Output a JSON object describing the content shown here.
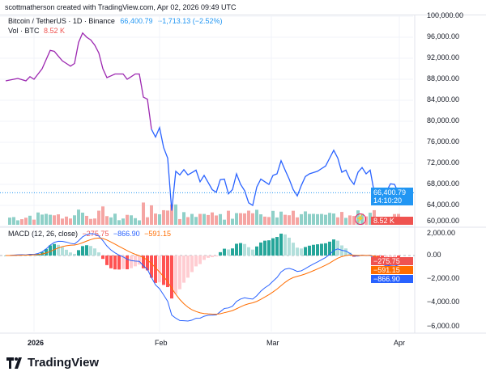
{
  "header": {
    "credit": "scottmatherson created with TradingView.com, Apr 02, 2026 09:49 UTC"
  },
  "legend": {
    "symbol": "Bitcoin / TetherUS · 1D · Binance",
    "price": "66,400.79",
    "change": "−1,713.13 (−2.52%)",
    "vol_label": "Vol · BTC",
    "vol_value": "8.52 K"
  },
  "macd_legend": {
    "label": "MACD (12, 26, close)",
    "hist": "−275.75",
    "macd": "−866.90",
    "signal": "−591.15"
  },
  "price_axis": [
    "100,000.00",
    "96,000.00",
    "92,000.00",
    "88,000.00",
    "84,000.00",
    "80,000.00",
    "76,000.00",
    "72,000.00",
    "68,000.00",
    "64,000.00",
    "60,000.00"
  ],
  "macd_axis": [
    "2,000.00",
    "0.00",
    "−2,000.00",
    "−4,000.00",
    "−6,000.00"
  ],
  "price_tag": {
    "price": "66,400.79",
    "countdown": "14:10:20"
  },
  "vol_tag": "8.52 K",
  "macd_tags": {
    "hist": "−275.75",
    "signal": "−591.15",
    "macd": "−866.90"
  },
  "time_axis": [
    "2026",
    "Feb",
    "Mar",
    "Apr"
  ],
  "logo": "TradingView",
  "colors": {
    "line": "#2962ff",
    "line_early": "#9c27b0",
    "up": "#26a69a",
    "down": "#ef5350",
    "signal": "#ff6d00",
    "tag_blue": "#2196f3"
  },
  "chart_data": {
    "type": "line",
    "y_range": [
      60000,
      100000
    ],
    "macd_range": [
      -6000,
      2000
    ],
    "prices": [
      [
        "2025-12-25",
        87700
      ],
      [
        "2025-12-28",
        88150
      ],
      [
        "2025-12-30",
        87700
      ],
      [
        "2025-12-31",
        88500
      ],
      [
        "2026-01-01",
        88000
      ],
      [
        "2026-01-03",
        90000
      ],
      [
        "2026-01-05",
        93500
      ],
      [
        "2026-01-06",
        93300
      ],
      [
        "2026-01-08",
        91500
      ],
      [
        "2026-01-10",
        90500
      ],
      [
        "2026-01-11",
        91000
      ],
      [
        "2026-01-12",
        95000
      ],
      [
        "2026-01-13",
        96800
      ],
      [
        "2026-01-14",
        96000
      ],
      [
        "2026-01-15",
        95500
      ],
      [
        "2026-01-16",
        94500
      ],
      [
        "2026-01-17",
        93000
      ],
      [
        "2026-01-18",
        90000
      ],
      [
        "2026-01-19",
        88300
      ],
      [
        "2026-01-21",
        89000
      ],
      [
        "2026-01-23",
        89000
      ],
      [
        "2026-01-24",
        88000
      ],
      [
        "2026-01-26",
        89000
      ],
      [
        "2026-01-27",
        89000
      ],
      [
        "2026-01-28",
        84600
      ],
      [
        "2026-01-29",
        84200
      ],
      [
        "2026-01-30",
        78500
      ],
      [
        "2026-01-31",
        77000
      ],
      [
        "2026-02-01",
        78800
      ],
      [
        "2026-02-02",
        75000
      ],
      [
        "2026-02-03",
        73000
      ],
      [
        "2026-02-04",
        63000
      ],
      [
        "2026-02-05",
        70500
      ],
      [
        "2026-02-06",
        69800
      ],
      [
        "2026-02-07",
        70800
      ],
      [
        "2026-02-08",
        69800
      ],
      [
        "2026-02-10",
        70700
      ],
      [
        "2026-02-11",
        68500
      ],
      [
        "2026-02-12",
        69700
      ],
      [
        "2026-02-14",
        67000
      ],
      [
        "2026-02-15",
        66500
      ],
      [
        "2026-02-16",
        68900
      ],
      [
        "2026-02-17",
        69000
      ],
      [
        "2026-02-18",
        66200
      ],
      [
        "2026-02-19",
        67000
      ],
      [
        "2026-02-20",
        70000
      ],
      [
        "2026-02-21",
        68000
      ],
      [
        "2026-02-22",
        66800
      ],
      [
        "2026-02-23",
        64500
      ],
      [
        "2026-02-24",
        64000
      ],
      [
        "2026-02-25",
        67500
      ],
      [
        "2026-02-26",
        69000
      ],
      [
        "2026-02-28",
        68000
      ],
      [
        "2026-03-01",
        69700
      ],
      [
        "2026-03-02",
        70000
      ],
      [
        "2026-03-03",
        72500
      ],
      [
        "2026-03-04",
        70700
      ],
      [
        "2026-03-05",
        69000
      ],
      [
        "2026-03-06",
        67000
      ],
      [
        "2026-03-07",
        65800
      ],
      [
        "2026-03-08",
        67800
      ],
      [
        "2026-03-09",
        69500
      ],
      [
        "2026-03-10",
        70000
      ],
      [
        "2026-03-12",
        70500
      ],
      [
        "2026-03-14",
        71500
      ],
      [
        "2026-03-15",
        73000
      ],
      [
        "2026-03-16",
        74500
      ],
      [
        "2026-03-17",
        73000
      ],
      [
        "2026-03-18",
        70300
      ],
      [
        "2026-03-19",
        70700
      ],
      [
        "2026-03-20",
        69000
      ],
      [
        "2026-03-21",
        68000
      ],
      [
        "2026-03-22",
        70300
      ],
      [
        "2026-03-23",
        71200
      ],
      [
        "2026-03-24",
        70000
      ],
      [
        "2026-03-25",
        70700
      ],
      [
        "2026-03-26",
        66500
      ],
      [
        "2026-03-27",
        66300
      ],
      [
        "2026-03-28",
        66200
      ],
      [
        "2026-03-29",
        66600
      ],
      [
        "2026-03-30",
        68100
      ],
      [
        "2026-03-31",
        68000
      ],
      [
        "2026-04-01",
        66400
      ]
    ]
  }
}
